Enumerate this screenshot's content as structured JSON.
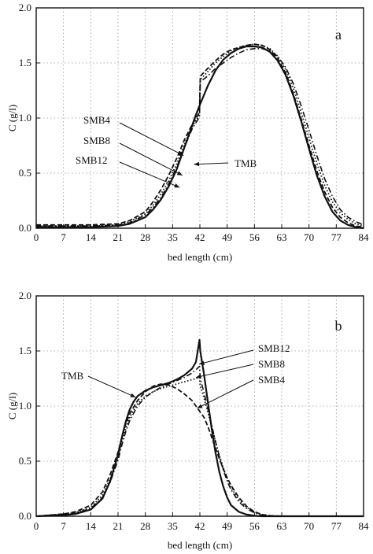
{
  "chart_data": [
    {
      "type": "line",
      "panel_label": "a",
      "title": "",
      "xlabel": "bed length (cm)",
      "ylabel": "C (g/l)",
      "xlim": [
        0,
        84
      ],
      "ylim": [
        0,
        2.0
      ],
      "x_ticks": [
        "0",
        "7",
        "14",
        "21",
        "28",
        "35",
        "42",
        "49",
        "56",
        "63",
        "70",
        "77",
        "84"
      ],
      "y_ticks": [
        "0.0",
        "0.5",
        "1.0",
        "1.5",
        "2.0"
      ],
      "grid": "dotted",
      "legend": "callout labels",
      "series": [
        {
          "name": "TMB",
          "style": "solid",
          "x": [
            0,
            14,
            21,
            24,
            28,
            30,
            32,
            34,
            36,
            38,
            40,
            41,
            42,
            44,
            46,
            48,
            50,
            52,
            54,
            56,
            58,
            60,
            62,
            64,
            66,
            68,
            70,
            72,
            74,
            76,
            78,
            80,
            82,
            84
          ],
          "y": [
            0.01,
            0.01,
            0.02,
            0.04,
            0.1,
            0.17,
            0.26,
            0.38,
            0.53,
            0.73,
            0.93,
            1.03,
            1.12,
            1.29,
            1.43,
            1.53,
            1.59,
            1.63,
            1.65,
            1.65,
            1.64,
            1.6,
            1.52,
            1.39,
            1.2,
            0.97,
            0.72,
            0.48,
            0.29,
            0.15,
            0.07,
            0.03,
            0.01,
            0.0
          ]
        },
        {
          "name": "SMB4",
          "style": "dashed",
          "x": [
            0,
            14,
            21,
            24,
            28,
            30,
            32,
            34,
            36,
            38,
            40,
            41.9,
            42.1,
            44,
            46,
            48,
            50,
            52,
            54,
            56,
            58,
            60,
            62,
            64,
            66,
            68,
            70,
            72,
            74,
            76,
            78,
            80,
            82,
            84
          ],
          "y": [
            0.03,
            0.03,
            0.04,
            0.07,
            0.15,
            0.24,
            0.35,
            0.48,
            0.63,
            0.8,
            0.94,
            1.05,
            1.38,
            1.45,
            1.52,
            1.58,
            1.62,
            1.64,
            1.66,
            1.67,
            1.66,
            1.62,
            1.54,
            1.41,
            1.22,
            0.99,
            0.75,
            0.52,
            0.33,
            0.19,
            0.1,
            0.05,
            0.02,
            0.01
          ]
        },
        {
          "name": "SMB8",
          "style": "dotted",
          "x": [
            0,
            14,
            21,
            24,
            28,
            30,
            32,
            34,
            36,
            38,
            40,
            41.9,
            42.1,
            44,
            46,
            48,
            50,
            52,
            54,
            56,
            58,
            60,
            62,
            64,
            66,
            68,
            70,
            72,
            74,
            76,
            78,
            80,
            82,
            84
          ],
          "y": [
            0.02,
            0.02,
            0.03,
            0.06,
            0.13,
            0.21,
            0.31,
            0.43,
            0.58,
            0.76,
            0.92,
            1.03,
            1.35,
            1.42,
            1.5,
            1.56,
            1.61,
            1.64,
            1.66,
            1.67,
            1.66,
            1.63,
            1.56,
            1.44,
            1.27,
            1.05,
            0.82,
            0.59,
            0.39,
            0.24,
            0.14,
            0.08,
            0.04,
            0.02
          ]
        },
        {
          "name": "SMB12",
          "style": "dash-dot",
          "x": [
            0,
            14,
            21,
            24,
            28,
            30,
            32,
            34,
            36,
            38,
            40,
            41.9,
            42.1,
            44,
            46,
            48,
            50,
            52,
            54,
            56,
            58,
            60,
            62,
            64,
            66,
            68,
            70,
            72,
            74,
            76,
            78,
            80,
            82,
            84
          ],
          "y": [
            0.02,
            0.02,
            0.03,
            0.05,
            0.12,
            0.19,
            0.28,
            0.4,
            0.55,
            0.73,
            0.9,
            1.01,
            1.33,
            1.38,
            1.45,
            1.5,
            1.55,
            1.59,
            1.62,
            1.63,
            1.63,
            1.61,
            1.56,
            1.46,
            1.31,
            1.11,
            0.89,
            0.66,
            0.45,
            0.29,
            0.17,
            0.1,
            0.06,
            0.03
          ]
        }
      ]
    },
    {
      "type": "line",
      "panel_label": "b",
      "title": "",
      "xlabel": "bed length (cm)",
      "ylabel": "C (g/l)",
      "xlim": [
        0,
        84
      ],
      "ylim": [
        0,
        2.0
      ],
      "x_ticks": [
        "0",
        "7",
        "14",
        "21",
        "28",
        "35",
        "42",
        "49",
        "56",
        "63",
        "70",
        "77",
        "84"
      ],
      "y_ticks": [
        "0.0",
        "0.5",
        "1.0",
        "1.5",
        "2.0"
      ],
      "grid": "dotted",
      "legend": "callout labels",
      "series": [
        {
          "name": "TMB",
          "style": "solid",
          "x": [
            0,
            7,
            10,
            14,
            17,
            19,
            21,
            22,
            23,
            24,
            25,
            26,
            28,
            30,
            32,
            34,
            36,
            38,
            40,
            41,
            41.9,
            42.1,
            43,
            44,
            45,
            46,
            47,
            48,
            49,
            50,
            52,
            54,
            56,
            58,
            60,
            63,
            70,
            84
          ],
          "y": [
            0.0,
            0.01,
            0.02,
            0.06,
            0.16,
            0.32,
            0.56,
            0.72,
            0.86,
            0.97,
            1.04,
            1.09,
            1.14,
            1.17,
            1.19,
            1.21,
            1.24,
            1.28,
            1.34,
            1.4,
            1.6,
            1.5,
            1.3,
            1.05,
            0.8,
            0.58,
            0.4,
            0.27,
            0.17,
            0.1,
            0.04,
            0.015,
            0.005,
            0.0,
            0.0,
            0.0,
            0.0,
            0.0
          ]
        },
        {
          "name": "SMB4",
          "style": "dashed",
          "x": [
            0,
            7,
            10,
            14,
            17,
            19,
            21,
            22,
            23,
            24,
            26,
            28,
            30,
            32,
            34,
            36,
            38,
            40,
            41,
            42,
            43,
            44,
            45,
            46,
            47,
            48,
            49,
            50,
            52,
            54,
            56,
            58,
            60,
            63,
            70,
            84
          ],
          "y": [
            0.0,
            0.02,
            0.04,
            0.1,
            0.22,
            0.38,
            0.58,
            0.72,
            0.84,
            0.93,
            1.05,
            1.13,
            1.18,
            1.2,
            1.19,
            1.16,
            1.11,
            1.05,
            1.0,
            0.95,
            0.9,
            0.82,
            0.72,
            0.62,
            0.52,
            0.43,
            0.35,
            0.28,
            0.17,
            0.09,
            0.04,
            0.015,
            0.005,
            0.0,
            0.0,
            0.0
          ]
        },
        {
          "name": "SMB8",
          "style": "dotted",
          "x": [
            0,
            7,
            10,
            14,
            17,
            19,
            21,
            22,
            23,
            24,
            26,
            28,
            30,
            32,
            34,
            36,
            38,
            40,
            41,
            41.9,
            42.1,
            43,
            44,
            45,
            46,
            47,
            48,
            49,
            50,
            52,
            54,
            56,
            58,
            60,
            63,
            70,
            84
          ],
          "y": [
            0.0,
            0.02,
            0.03,
            0.08,
            0.19,
            0.34,
            0.54,
            0.68,
            0.8,
            0.9,
            1.02,
            1.09,
            1.13,
            1.16,
            1.18,
            1.2,
            1.22,
            1.24,
            1.25,
            1.26,
            1.18,
            1.08,
            0.95,
            0.82,
            0.68,
            0.55,
            0.44,
            0.34,
            0.26,
            0.15,
            0.08,
            0.04,
            0.015,
            0.005,
            0.0,
            0.0,
            0.0
          ]
        },
        {
          "name": "SMB12",
          "style": "dash-dot",
          "x": [
            0,
            7,
            10,
            14,
            17,
            19,
            21,
            22,
            23,
            24,
            26,
            28,
            30,
            32,
            34,
            36,
            38,
            40,
            41,
            41.9,
            42.1,
            43,
            44,
            45,
            46,
            47,
            48,
            49,
            50,
            52,
            54,
            56,
            58,
            60,
            63,
            70,
            84
          ],
          "y": [
            0.0,
            0.02,
            0.03,
            0.07,
            0.17,
            0.31,
            0.51,
            0.65,
            0.77,
            0.87,
            1.0,
            1.08,
            1.13,
            1.17,
            1.2,
            1.23,
            1.26,
            1.3,
            1.33,
            1.36,
            1.25,
            1.13,
            0.98,
            0.83,
            0.68,
            0.54,
            0.42,
            0.32,
            0.24,
            0.13,
            0.07,
            0.03,
            0.01,
            0.0,
            0.0,
            0.0,
            0.0
          ]
        }
      ]
    }
  ]
}
